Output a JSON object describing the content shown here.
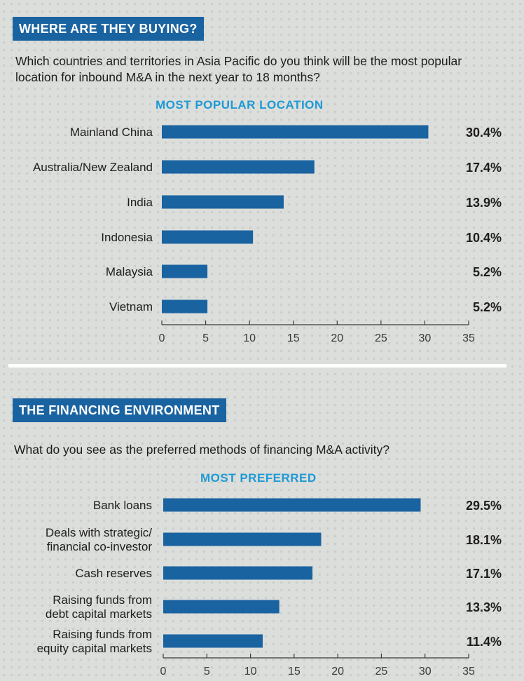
{
  "sections": [
    {
      "heading": "WHERE ARE THEY BUYING?",
      "question": "Which countries and territories in Asia Pacific do you think will be the most popular location for inbound M&A in the next year to 18 months?",
      "chart_title": "MOST POPULAR LOCATION"
    },
    {
      "heading": "THE FINANCING ENVIRONMENT",
      "question": "What do you see as the preferred methods of financing M&A activity?",
      "chart_title": "MOST PREFERRED"
    }
  ],
  "colors": {
    "bar": "#1a63a1",
    "heading_bg": "#1a63a1",
    "subtitle": "#1e9ad6"
  },
  "chart_data": [
    {
      "type": "bar",
      "orientation": "horizontal",
      "title": "MOST POPULAR LOCATION",
      "categories": [
        "Mainland China",
        "Australia/New Zealand",
        "India",
        "Indonesia",
        "Malaysia",
        "Vietnam"
      ],
      "values": [
        30.4,
        17.4,
        13.9,
        10.4,
        5.2,
        5.2
      ],
      "value_labels": [
        "30.4%",
        "17.4%",
        "13.9%",
        "10.4%",
        "5.2%",
        "5.2%"
      ],
      "xlim": [
        0,
        35
      ],
      "xticks": [
        0,
        5,
        10,
        15,
        20,
        25,
        30,
        35
      ],
      "grid": false
    },
    {
      "type": "bar",
      "orientation": "horizontal",
      "title": "MOST PREFERRED",
      "categories": [
        [
          "Bank loans"
        ],
        [
          "Deals with strategic/",
          "financial co-investor"
        ],
        [
          "Cash reserves"
        ],
        [
          "Raising funds from",
          "debt capital markets"
        ],
        [
          "Raising funds from",
          "equity capital markets"
        ]
      ],
      "values": [
        29.5,
        18.1,
        17.1,
        13.3,
        11.4
      ],
      "value_labels": [
        "29.5%",
        "18.1%",
        "17.1%",
        "13.3%",
        "11.4%"
      ],
      "xlim": [
        0,
        35
      ],
      "xticks": [
        0,
        5,
        10,
        15,
        20,
        25,
        30,
        35
      ],
      "grid": false
    }
  ]
}
